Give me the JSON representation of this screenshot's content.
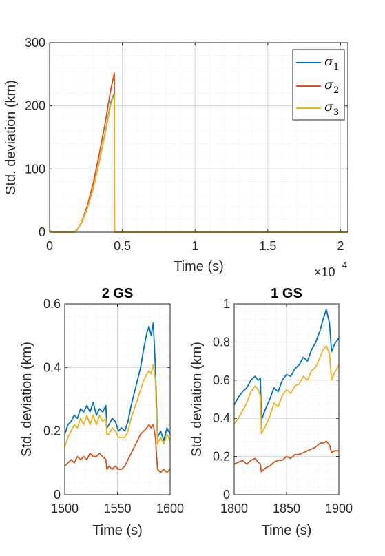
{
  "colors": {
    "sigma1": "#0072BD",
    "sigma2": "#D95319",
    "sigma3": "#EDB120",
    "axis": "#262626",
    "grid": "#DFDFDF"
  },
  "chart_data": [
    {
      "type": "line",
      "title": "",
      "xlabel": "Time (s)",
      "ylabel": "Std. deviation (km)",
      "xlim": [
        0,
        20500
      ],
      "ylim": [
        0,
        300
      ],
      "xticks": [
        0,
        5000,
        10000,
        15000,
        20000
      ],
      "xtick_labels": [
        "0",
        "0.5",
        "1",
        "1.5",
        "2"
      ],
      "x_exponent": {
        "base": "×10",
        "power": "4"
      },
      "yticks": [
        0,
        100,
        200,
        300
      ],
      "ytick_labels": [
        "0",
        "100",
        "200",
        "300"
      ],
      "grid": true,
      "minor_grid": true,
      "legend": {
        "placement": "top-right",
        "entries": [
          {
            "symbol": "σ",
            "sub": "1"
          },
          {
            "symbol": "σ",
            "sub": "2"
          },
          {
            "symbol": "σ",
            "sub": "3"
          }
        ]
      },
      "series": [
        {
          "x": [
            0,
            200,
            1700,
            1900,
            2200,
            2600,
            3000,
            3400,
            3800,
            4200,
            4450,
            4460,
            4500,
            20500
          ],
          "y": [
            3,
            0.5,
            0.5,
            4,
            15,
            38,
            70,
            110,
            155,
            205,
            220,
            1,
            0.3,
            0.3
          ]
        },
        {
          "x": [
            0,
            200,
            1700,
            1900,
            2200,
            2600,
            3000,
            3400,
            3800,
            4200,
            4450,
            4460,
            4500,
            20500
          ],
          "y": [
            3,
            0.2,
            0.2,
            4,
            16,
            42,
            78,
            122,
            170,
            225,
            252,
            1,
            0.2,
            0.2
          ]
        },
        {
          "x": [
            0,
            200,
            1700,
            1900,
            2200,
            2600,
            3000,
            3400,
            3800,
            4200,
            4450,
            4460,
            4500,
            20500
          ],
          "y": [
            3,
            0.4,
            0.4,
            4,
            15,
            38,
            70,
            110,
            154,
            202,
            218,
            1,
            0.3,
            0.3
          ]
        }
      ]
    },
    {
      "type": "line",
      "title": "2 GS",
      "xlabel": "Time (s)",
      "ylabel": "Std. deviation (km)",
      "xlim": [
        1500,
        1600
      ],
      "ylim": [
        0,
        0.6
      ],
      "xticks": [
        1500,
        1550,
        1600
      ],
      "xtick_labels": [
        "1500",
        "1550",
        "1600"
      ],
      "yticks": [
        0,
        0.2,
        0.4,
        0.6
      ],
      "ytick_labels": [
        "0",
        "0.2",
        "0.4",
        "0.6"
      ],
      "grid": true,
      "minor_grid": true,
      "series": [
        {
          "x": [
            1500,
            1503,
            1506,
            1509,
            1512,
            1515,
            1518,
            1521,
            1524,
            1527,
            1530,
            1533,
            1536,
            1539,
            1540,
            1542,
            1545,
            1548,
            1551,
            1554,
            1557,
            1560,
            1563,
            1566,
            1569,
            1572,
            1575,
            1578,
            1580,
            1582,
            1584,
            1586,
            1588,
            1591,
            1594,
            1597,
            1600
          ],
          "y": [
            0.19,
            0.22,
            0.23,
            0.25,
            0.24,
            0.27,
            0.26,
            0.28,
            0.26,
            0.29,
            0.25,
            0.27,
            0.26,
            0.28,
            0.21,
            0.22,
            0.24,
            0.23,
            0.2,
            0.21,
            0.2,
            0.23,
            0.28,
            0.32,
            0.36,
            0.4,
            0.46,
            0.51,
            0.53,
            0.5,
            0.54,
            0.4,
            0.18,
            0.2,
            0.17,
            0.21,
            0.19
          ]
        },
        {
          "x": [
            1500,
            1503,
            1506,
            1509,
            1512,
            1515,
            1518,
            1521,
            1524,
            1527,
            1530,
            1533,
            1536,
            1539,
            1540,
            1542,
            1545,
            1548,
            1551,
            1554,
            1557,
            1560,
            1563,
            1566,
            1569,
            1572,
            1575,
            1578,
            1580,
            1582,
            1584,
            1586,
            1588,
            1591,
            1594,
            1597,
            1600
          ],
          "y": [
            0.09,
            0.1,
            0.11,
            0.1,
            0.12,
            0.11,
            0.12,
            0.11,
            0.13,
            0.12,
            0.12,
            0.13,
            0.12,
            0.11,
            0.08,
            0.09,
            0.08,
            0.09,
            0.08,
            0.08,
            0.09,
            0.11,
            0.13,
            0.15,
            0.17,
            0.19,
            0.2,
            0.21,
            0.22,
            0.21,
            0.22,
            0.18,
            0.08,
            0.07,
            0.08,
            0.07,
            0.08
          ]
        },
        {
          "x": [
            1500,
            1503,
            1506,
            1509,
            1512,
            1515,
            1518,
            1521,
            1524,
            1527,
            1530,
            1533,
            1536,
            1539,
            1540,
            1542,
            1545,
            1548,
            1551,
            1554,
            1557,
            1560,
            1563,
            1566,
            1569,
            1572,
            1575,
            1578,
            1580,
            1582,
            1584,
            1586,
            1588,
            1591,
            1594,
            1597,
            1600
          ],
          "y": [
            0.15,
            0.18,
            0.2,
            0.22,
            0.21,
            0.24,
            0.22,
            0.25,
            0.22,
            0.25,
            0.22,
            0.25,
            0.23,
            0.24,
            0.19,
            0.19,
            0.21,
            0.2,
            0.18,
            0.18,
            0.18,
            0.2,
            0.24,
            0.27,
            0.3,
            0.33,
            0.36,
            0.38,
            0.39,
            0.38,
            0.41,
            0.36,
            0.16,
            0.18,
            0.16,
            0.19,
            0.17
          ]
        }
      ]
    },
    {
      "type": "line",
      "title": "1 GS",
      "xlabel": "Time (s)",
      "ylabel": "Std. deviation (km)",
      "xlim": [
        1800,
        1900
      ],
      "ylim": [
        0,
        1
      ],
      "xticks": [
        1800,
        1850,
        1900
      ],
      "xtick_labels": [
        "1800",
        "1850",
        "1900"
      ],
      "yticks": [
        0,
        0.2,
        0.4,
        0.6,
        0.8,
        1
      ],
      "ytick_labels": [
        "0",
        "0.2",
        "0.4",
        "0.6",
        "0.8",
        "1"
      ],
      "grid": true,
      "minor_grid": true,
      "series": [
        {
          "x": [
            1800,
            1804,
            1808,
            1812,
            1816,
            1820,
            1823,
            1825,
            1826,
            1830,
            1834,
            1838,
            1842,
            1846,
            1850,
            1854,
            1858,
            1862,
            1866,
            1870,
            1874,
            1878,
            1882,
            1885,
            1888,
            1891,
            1893,
            1896,
            1900
          ],
          "y": [
            0.47,
            0.51,
            0.54,
            0.56,
            0.6,
            0.62,
            0.6,
            0.61,
            0.39,
            0.45,
            0.5,
            0.56,
            0.54,
            0.6,
            0.63,
            0.62,
            0.66,
            0.68,
            0.72,
            0.7,
            0.76,
            0.8,
            0.86,
            0.92,
            0.97,
            0.9,
            0.75,
            0.79,
            0.82
          ]
        },
        {
          "x": [
            1800,
            1804,
            1808,
            1812,
            1816,
            1820,
            1823,
            1825,
            1826,
            1830,
            1834,
            1838,
            1842,
            1846,
            1850,
            1854,
            1858,
            1862,
            1866,
            1870,
            1874,
            1878,
            1882,
            1885,
            1888,
            1891,
            1893,
            1896,
            1900
          ],
          "y": [
            0.16,
            0.17,
            0.18,
            0.16,
            0.18,
            0.19,
            0.17,
            0.16,
            0.12,
            0.14,
            0.15,
            0.17,
            0.18,
            0.18,
            0.2,
            0.19,
            0.21,
            0.21,
            0.22,
            0.23,
            0.24,
            0.25,
            0.27,
            0.27,
            0.28,
            0.26,
            0.22,
            0.23,
            0.23
          ]
        },
        {
          "x": [
            1800,
            1804,
            1808,
            1812,
            1816,
            1820,
            1823,
            1825,
            1826,
            1830,
            1834,
            1838,
            1842,
            1846,
            1850,
            1854,
            1858,
            1862,
            1866,
            1870,
            1874,
            1878,
            1882,
            1885,
            1888,
            1891,
            1893,
            1896,
            1900
          ],
          "y": [
            0.37,
            0.4,
            0.44,
            0.48,
            0.54,
            0.57,
            0.55,
            0.52,
            0.32,
            0.36,
            0.41,
            0.48,
            0.46,
            0.52,
            0.55,
            0.53,
            0.57,
            0.58,
            0.62,
            0.6,
            0.65,
            0.67,
            0.72,
            0.76,
            0.78,
            0.74,
            0.6,
            0.64,
            0.68
          ]
        }
      ]
    }
  ]
}
